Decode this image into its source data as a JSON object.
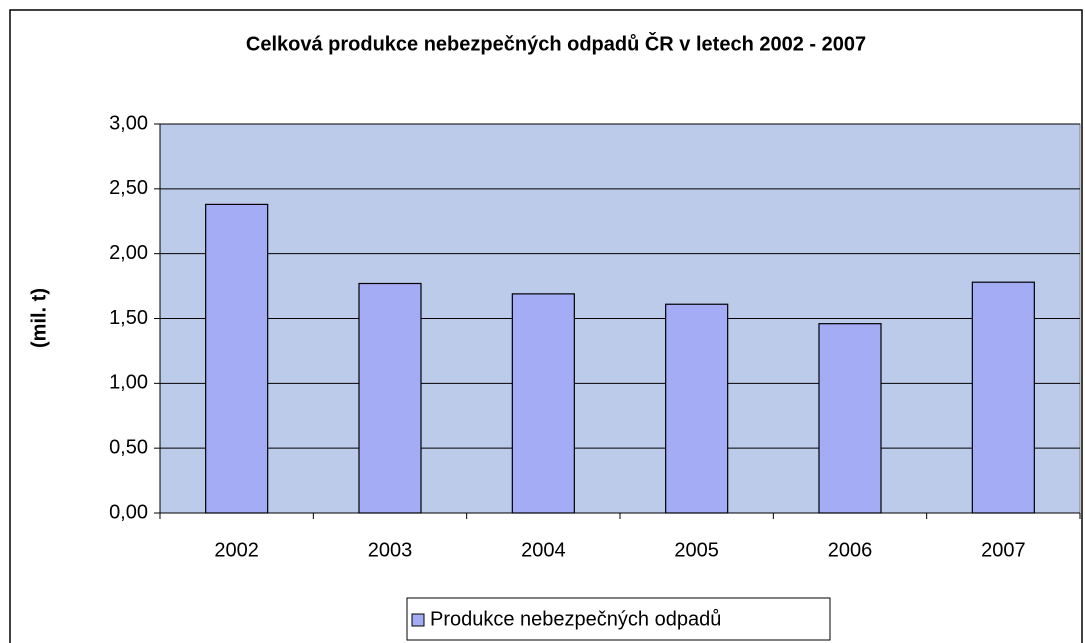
{
  "chart_data": {
    "type": "bar",
    "title": "Celková produkce nebezpečných odpadů ČR v letech 2002 - 2007",
    "y_label": "(mil. t)",
    "categories": [
      "2002",
      "2003",
      "2004",
      "2005",
      "2006",
      "2007"
    ],
    "series": [
      {
        "name": "Produkce nebezpečných odpadů",
        "color": "#a3acf5",
        "values": [
          2.38,
          1.77,
          1.69,
          1.61,
          1.46,
          1.78
        ]
      }
    ],
    "ylim": [
      0,
      3
    ],
    "yticks": [
      {
        "value": 0,
        "label": "0,00"
      },
      {
        "value": 0.5,
        "label": "0,50"
      },
      {
        "value": 1,
        "label": "1,00"
      },
      {
        "value": 1.5,
        "label": "1,50"
      },
      {
        "value": 2,
        "label": "2,00"
      },
      {
        "value": 2.5,
        "label": "2,50"
      },
      {
        "value": 3,
        "label": "3,00"
      }
    ],
    "grid": true,
    "legend": "bottom"
  }
}
